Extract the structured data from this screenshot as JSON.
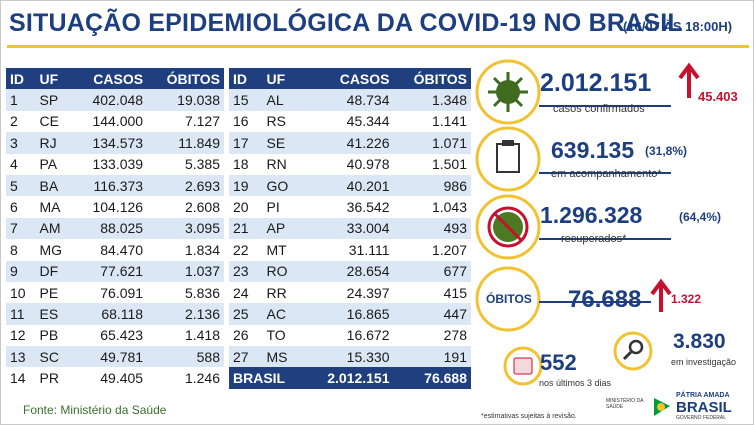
{
  "header": {
    "title": "SITUAÇÃO EPIDEMIOLÓGICA DA COVID-19 NO BRASIL",
    "timestamp": "(16/07 ÀS 18:00H)"
  },
  "tables": [
    {
      "columns": [
        "ID",
        "UF",
        "CASOS",
        "ÓBITOS"
      ],
      "rows": [
        [
          "1",
          "SP",
          "402.048",
          "19.038"
        ],
        [
          "2",
          "CE",
          "144.000",
          "7.127"
        ],
        [
          "3",
          "RJ",
          "134.573",
          "11.849"
        ],
        [
          "4",
          "PA",
          "133.039",
          "5.385"
        ],
        [
          "5",
          "BA",
          "116.373",
          "2.693"
        ],
        [
          "6",
          "MA",
          "104.126",
          "2.608"
        ],
        [
          "7",
          "AM",
          "88.025",
          "3.095"
        ],
        [
          "8",
          "MG",
          "84.470",
          "1.834"
        ],
        [
          "9",
          "DF",
          "77.621",
          "1.037"
        ],
        [
          "10",
          "PE",
          "76.091",
          "5.836"
        ],
        [
          "11",
          "ES",
          "68.118",
          "2.136"
        ],
        [
          "12",
          "PB",
          "65.423",
          "1.418"
        ],
        [
          "13",
          "SC",
          "49.781",
          "588"
        ],
        [
          "14",
          "PR",
          "49.405",
          "1.246"
        ]
      ]
    },
    {
      "columns": [
        "ID",
        "UF",
        "CASOS",
        "ÓBITOS"
      ],
      "rows": [
        [
          "15",
          "AL",
          "48.734",
          "1.348"
        ],
        [
          "16",
          "RS",
          "45.344",
          "1.141"
        ],
        [
          "17",
          "SE",
          "41.226",
          "1.071"
        ],
        [
          "18",
          "RN",
          "40.978",
          "1.501"
        ],
        [
          "19",
          "GO",
          "40.201",
          "986"
        ],
        [
          "20",
          "PI",
          "36.542",
          "1.043"
        ],
        [
          "21",
          "AP",
          "33.004",
          "493"
        ],
        [
          "22",
          "MT",
          "31.111",
          "1.207"
        ],
        [
          "23",
          "RO",
          "28.654",
          "677"
        ],
        [
          "24",
          "RR",
          "24.397",
          "415"
        ],
        [
          "25",
          "AC",
          "16.865",
          "447"
        ],
        [
          "26",
          "TO",
          "16.672",
          "278"
        ],
        [
          "27",
          "MS",
          "15.330",
          "191"
        ]
      ],
      "total": [
        "BRASIL",
        "2.012.151",
        "76.688"
      ]
    }
  ],
  "stats": {
    "confirmed": {
      "value": "2.012.151",
      "label": "casos confirmados",
      "increase": "45.403"
    },
    "monitoring": {
      "value": "639.135",
      "percent": "(31,8%)",
      "label": "em acompanhamento*"
    },
    "recovered": {
      "value": "1.296.328",
      "percent": "(64,4%)",
      "label": "recuperados*"
    },
    "deaths": {
      "label": "ÓBITOS",
      "value": "76.688",
      "increase": "1.322"
    },
    "recent": {
      "value": "552",
      "label": "nos últimos 3 dias"
    },
    "investigation": {
      "value": "3.830",
      "label": "em investigação"
    }
  },
  "footer": {
    "source": "Fonte: Ministério da Saúde",
    "note": "*estimativas sujeitas à revisão.",
    "ministry": "MINISTÉRIO DA SAÚDE",
    "slogan": "PÁTRIA AMADA",
    "brand": "BRASIL",
    "government": "GOVERNO FEDERAL"
  }
}
